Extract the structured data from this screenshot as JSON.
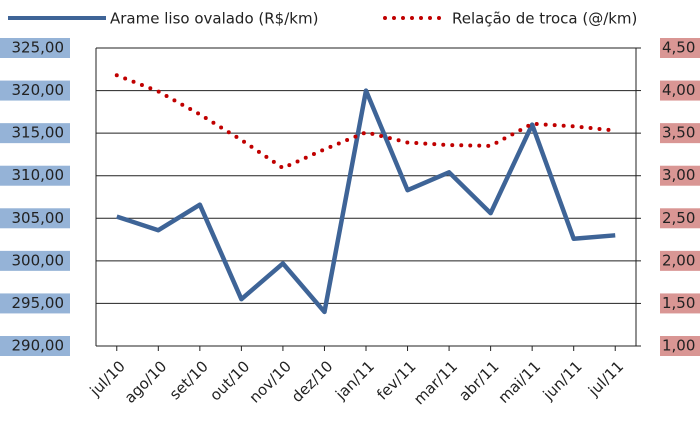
{
  "chart_data": {
    "type": "line",
    "categories": [
      "jul/10",
      "ago/10",
      "set/10",
      "out/10",
      "nov/10",
      "dez/10",
      "jan/11",
      "fev/11",
      "mar/11",
      "abr/11",
      "mai/11",
      "jun/11",
      "jul/11"
    ],
    "series": [
      {
        "name": "Arame liso ovalado (R$/km)",
        "color": "#3e6497",
        "style": "solid",
        "values": [
          305.2,
          303.6,
          306.6,
          295.5,
          299.7,
          294.0,
          320.0,
          308.3,
          310.4,
          305.6,
          316.0,
          302.6,
          303.0
        ]
      },
      {
        "name": "Relação de troca (@/km)",
        "color": "#c00000",
        "style": "dotted",
        "axis": "y2",
        "values": [
          4.18,
          3.99,
          3.72,
          3.42,
          3.09,
          3.31,
          3.51,
          3.39,
          3.36,
          3.35,
          3.61,
          3.58,
          3.53
        ]
      }
    ],
    "ylim": [
      290,
      325
    ],
    "yticks": [
      {
        "value": 290,
        "label": "290,00"
      },
      {
        "value": 295,
        "label": "295,00"
      },
      {
        "value": 300,
        "label": "300,00"
      },
      {
        "value": 305,
        "label": "305,00"
      },
      {
        "value": 310,
        "label": "310,00"
      },
      {
        "value": 315,
        "label": "315,00"
      },
      {
        "value": 320,
        "label": "320,00"
      },
      {
        "value": 325,
        "label": "325,00"
      }
    ],
    "y2lim": [
      1,
      4.5
    ],
    "y2ticks": [
      {
        "value": 1,
        "label": "1,00"
      },
      {
        "value": 1.5,
        "label": "1,50"
      },
      {
        "value": 2,
        "label": "2,00"
      },
      {
        "value": 2.5,
        "label": "2,50"
      },
      {
        "value": 3,
        "label": "3,00"
      },
      {
        "value": 3.5,
        "label": "3,50"
      },
      {
        "value": 4,
        "label": "4,00"
      },
      {
        "value": 4.5,
        "label": "4,50"
      }
    ],
    "grid": true
  }
}
